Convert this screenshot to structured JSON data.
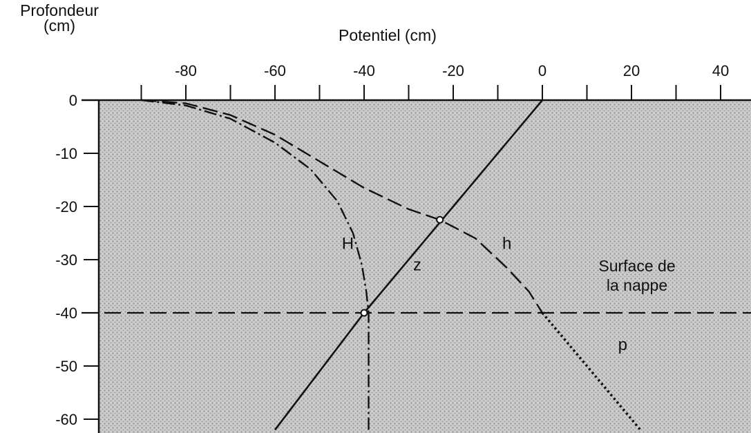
{
  "chart_data": {
    "type": "line",
    "title": "",
    "xlabel": "Potentiel (cm)",
    "ylabel_line1": "Profondeur",
    "ylabel_line2": "(cm)",
    "xlim": [
      -97,
      47
    ],
    "ylim": [
      -62,
      0
    ],
    "x_ticks_major": [
      -80,
      -60,
      -40,
      -20,
      0,
      20,
      40
    ],
    "x_ticks_minor": [
      -90,
      -70,
      -50,
      -30,
      -10,
      10,
      30
    ],
    "y_ticks": [
      0,
      -10,
      -20,
      -30,
      -40,
      -50,
      -60
    ],
    "x_tick_labels": [
      "-80",
      "-60",
      "-40",
      "-20",
      "0",
      "20",
      "40"
    ],
    "y_tick_labels": [
      "0",
      "-10",
      "-20",
      "-30",
      "-40",
      "-50",
      "-60"
    ],
    "grid": false,
    "background": "stippled soil shading",
    "water_table": {
      "depth": -40,
      "label_line1": "Surface de",
      "label_line2": "la nappe"
    },
    "series": [
      {
        "name": "z",
        "style": "solid",
        "points": [
          [
            0,
            0
          ],
          [
            -40,
            -40
          ],
          [
            -60,
            -62
          ]
        ]
      },
      {
        "name": "h",
        "style": "dashed",
        "points": [
          [
            -90,
            0
          ],
          [
            -80,
            -0.6
          ],
          [
            -70,
            -2.8
          ],
          [
            -60,
            -6.5
          ],
          [
            -50,
            -11.5
          ],
          [
            -40,
            -16.5
          ],
          [
            -30,
            -20.5
          ],
          [
            -23,
            -22.5
          ],
          [
            -15,
            -26
          ],
          [
            -8,
            -31.5
          ],
          [
            -3,
            -36
          ],
          [
            0,
            -40
          ]
        ]
      },
      {
        "name": "H",
        "style": "dash-dot",
        "points": [
          [
            -90,
            0
          ],
          [
            -80,
            -1
          ],
          [
            -70,
            -3.5
          ],
          [
            -60,
            -8
          ],
          [
            -52,
            -13
          ],
          [
            -46,
            -19
          ],
          [
            -42.5,
            -25
          ],
          [
            -40.5,
            -31
          ],
          [
            -39.5,
            -36
          ],
          [
            -39,
            -40
          ],
          [
            -39,
            -62
          ]
        ]
      },
      {
        "name": "p",
        "style": "dotted",
        "points": [
          [
            0,
            -40
          ],
          [
            10,
            -50
          ],
          [
            22,
            -62
          ]
        ]
      }
    ],
    "intersections": [
      [
        -23,
        -22.5
      ],
      [
        -40,
        -40
      ]
    ],
    "annotations": [
      {
        "text": "H",
        "x": -45,
        "y": -28
      },
      {
        "text": "h",
        "x": -9,
        "y": -28
      },
      {
        "text": "z",
        "x": -29,
        "y": -32
      },
      {
        "text": "p",
        "x": 17,
        "y": -47
      }
    ]
  }
}
